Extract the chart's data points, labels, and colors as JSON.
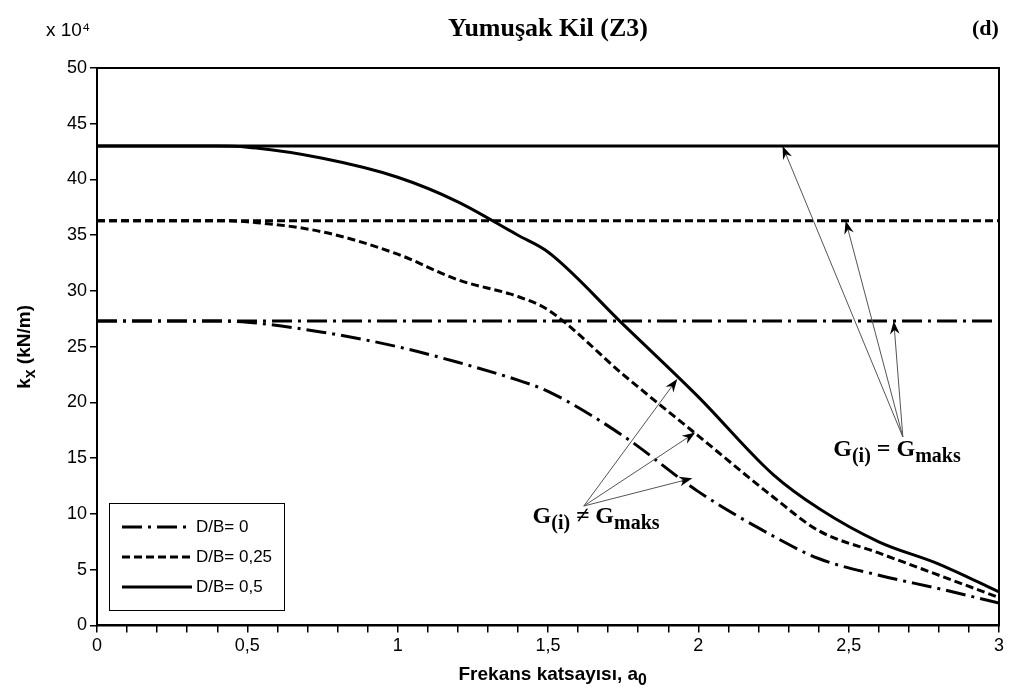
{
  "chart_data": {
    "type": "line",
    "title": "Yumuşak Kil (Z3)",
    "xlabel": "Frekans katsayısı, a$_{0}$",
    "ylabel": "k$_{x}$ (kN/m)",
    "x": [
      0,
      0.25,
      0.4,
      0.5,
      0.75,
      1,
      1.2,
      1.4,
      1.5,
      1.75,
      2,
      2.25,
      2.4,
      2.6,
      2.8,
      3
    ],
    "series": [
      {
        "name": "D/B= 0",
        "color": "#000000",
        "line_style": "dashdot",
        "values": [
          27.3,
          27.3,
          27.3,
          27.2,
          26.3,
          25,
          23.6,
          22,
          21,
          17,
          12,
          8,
          6,
          4.5,
          3.3,
          2
        ]
      },
      {
        "name": "D/B= 0,25",
        "color": "#000000",
        "line_style": "dashed",
        "values": [
          36.3,
          36.3,
          36.3,
          36.2,
          35.3,
          33.3,
          31,
          29.5,
          28.3,
          22.5,
          17,
          11.5,
          8.5,
          6.5,
          4.5,
          2.5
        ]
      },
      {
        "name": "D/B= 0,5",
        "color": "#000000",
        "line_style": "solid",
        "values": [
          43,
          43,
          43,
          42.9,
          41.9,
          40.2,
          38,
          35,
          33.5,
          27,
          20.5,
          13.5,
          10.5,
          7.5,
          5.5,
          3
        ]
      }
    ],
    "ref_lines": [
      {
        "axis": "y",
        "value": 27.3,
        "color": "#000000",
        "line_style": "dashdot"
      },
      {
        "axis": "y",
        "value": 36.3,
        "color": "#000000",
        "line_style": "dashed"
      },
      {
        "axis": "y",
        "value": 43,
        "color": "#000000",
        "line_style": "solid"
      }
    ],
    "annotations": [
      "x 10⁴",
      "(d)",
      {
        "text": "G$_{(i)}$ = G$_{maks}$",
        "x": 2.49,
        "y": 36.3
      },
      {
        "text": "G$_{(i)}$ ≠ G$_{maks}$",
        "x": 1.99,
        "y": 17.3
      }
    ],
    "xlim": [
      0,
      3
    ],
    "ylim": [
      0,
      50
    ],
    "xticks": [
      0,
      {
        "value": 0.1,
        "label": null
      },
      {
        "value": 0.2,
        "label": null
      },
      {
        "value": 0.3,
        "label": null
      },
      {
        "value": 0.4,
        "label": null
      },
      {
        "value": 0.5,
        "label": "0,5"
      },
      {
        "value": 0.6,
        "label": null
      },
      {
        "value": 0.7,
        "label": null
      },
      {
        "value": 0.8,
        "label": null
      },
      {
        "value": 0.9,
        "label": null
      },
      1,
      {
        "value": 1.1,
        "label": null
      },
      {
        "value": 1.2,
        "label": null
      },
      {
        "value": 1.3,
        "label": null
      },
      {
        "value": 1.4,
        "label": null
      },
      {
        "value": 1.5,
        "label": "1,5"
      },
      {
        "value": 1.6,
        "label": null
      },
      {
        "value": 1.7,
        "label": null
      },
      {
        "value": 1.8,
        "label": null
      },
      {
        "value": 1.9,
        "label": null
      },
      2,
      {
        "value": 2.1,
        "label": null
      },
      {
        "value": 2.2,
        "label": null
      },
      {
        "value": 2.3,
        "label": null
      },
      {
        "value": 2.4,
        "label": null
      },
      {
        "value": 2.5,
        "label": "2,5"
      },
      {
        "value": 2.6,
        "label": null
      },
      {
        "value": 2.7,
        "label": null
      },
      {
        "value": 2.8,
        "label": null
      },
      {
        "value": 2.9,
        "label": null
      },
      3
    ],
    "yticks": [
      0,
      5,
      10,
      15,
      20,
      25,
      30,
      35,
      40,
      45,
      50
    ],
    "grid": false,
    "legend": "bottom left",
    "marker": "none"
  }
}
